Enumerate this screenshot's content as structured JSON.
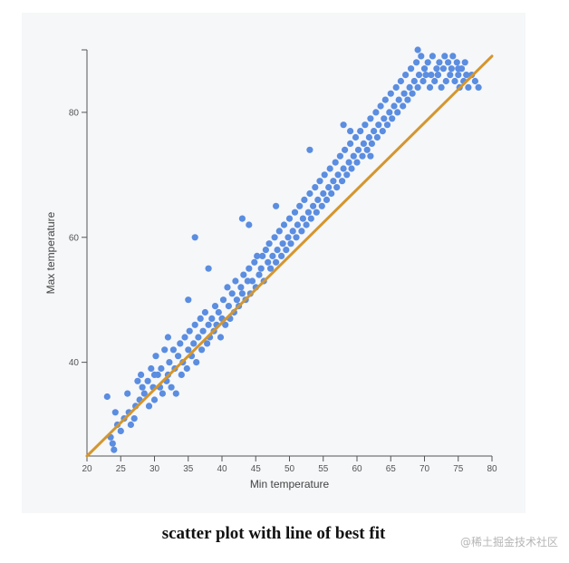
{
  "caption": "scatter plot with line of best fit",
  "watermark": "@稀土掘金技术社区",
  "colors": {
    "points": "#5b8de0",
    "fit_line": "#d4962e",
    "axis": "#555555",
    "panel": "#f5f7f9"
  },
  "chart_data": {
    "type": "scatter",
    "title": "",
    "xlabel": "Min temperature",
    "ylabel": "Max temperature",
    "xlim": [
      20,
      80
    ],
    "ylim": [
      25,
      90
    ],
    "x_ticks": [
      20,
      25,
      30,
      35,
      40,
      45,
      50,
      55,
      60,
      65,
      70,
      75,
      80
    ],
    "y_ticks": [
      40,
      60,
      80
    ],
    "grid": false,
    "best_fit_line": {
      "x": [
        20,
        80
      ],
      "y": [
        25,
        89
      ]
    },
    "series": [
      {
        "points": [
          [
            23,
            34.5
          ],
          [
            23.5,
            28
          ],
          [
            23.8,
            27
          ],
          [
            24,
            26
          ],
          [
            24.2,
            32
          ],
          [
            24.5,
            30
          ],
          [
            25,
            29
          ],
          [
            25.5,
            31
          ],
          [
            26,
            35
          ],
          [
            26.2,
            32
          ],
          [
            26.5,
            30
          ],
          [
            27,
            31
          ],
          [
            27.2,
            33
          ],
          [
            27.5,
            37
          ],
          [
            27.8,
            34
          ],
          [
            28,
            38
          ],
          [
            28.2,
            36
          ],
          [
            28.5,
            35
          ],
          [
            29,
            37
          ],
          [
            29.2,
            33
          ],
          [
            29.5,
            39
          ],
          [
            29.8,
            36
          ],
          [
            30,
            34
          ],
          [
            30.2,
            41
          ],
          [
            30.5,
            38
          ],
          [
            30.8,
            36
          ],
          [
            31,
            39
          ],
          [
            31.2,
            35
          ],
          [
            31.5,
            42
          ],
          [
            31.8,
            37
          ],
          [
            32,
            38
          ],
          [
            32.2,
            40
          ],
          [
            32.5,
            36
          ],
          [
            32.8,
            42
          ],
          [
            33,
            39
          ],
          [
            33.2,
            35
          ],
          [
            33.5,
            41
          ],
          [
            33.8,
            43
          ],
          [
            34,
            38
          ],
          [
            34.2,
            40
          ],
          [
            34.5,
            44
          ],
          [
            34.8,
            39
          ],
          [
            35,
            42
          ],
          [
            35.2,
            45
          ],
          [
            35.5,
            41
          ],
          [
            35.8,
            43
          ],
          [
            36,
            46
          ],
          [
            36.2,
            40
          ],
          [
            36.5,
            44
          ],
          [
            36.8,
            47
          ],
          [
            37,
            42
          ],
          [
            37.2,
            45
          ],
          [
            37.5,
            48
          ],
          [
            37.8,
            43
          ],
          [
            38,
            46
          ],
          [
            38.2,
            44
          ],
          [
            38.5,
            47
          ],
          [
            38.8,
            45
          ],
          [
            39,
            49
          ],
          [
            39.2,
            46
          ],
          [
            39.5,
            48
          ],
          [
            39.8,
            44
          ],
          [
            40,
            47
          ],
          [
            40.2,
            50
          ],
          [
            40.5,
            46
          ],
          [
            40.8,
            52
          ],
          [
            41,
            49
          ],
          [
            41.2,
            47
          ],
          [
            41.5,
            51
          ],
          [
            41.8,
            48
          ],
          [
            42,
            53
          ],
          [
            42.2,
            50
          ],
          [
            42.5,
            49
          ],
          [
            42.8,
            52
          ],
          [
            43,
            51
          ],
          [
            43.2,
            54
          ],
          [
            43.5,
            50
          ],
          [
            43.8,
            53
          ],
          [
            44,
            55
          ],
          [
            44.2,
            51
          ],
          [
            44.5,
            53
          ],
          [
            44.8,
            56
          ],
          [
            45,
            52
          ],
          [
            45.2,
            57
          ],
          [
            45.5,
            54
          ],
          [
            45.8,
            55
          ],
          [
            46,
            57
          ],
          [
            46.2,
            53
          ],
          [
            46.5,
            58
          ],
          [
            46.8,
            56
          ],
          [
            47,
            59
          ],
          [
            47.2,
            55
          ],
          [
            47.5,
            57
          ],
          [
            47.8,
            60
          ],
          [
            48,
            56
          ],
          [
            48.2,
            58
          ],
          [
            48.5,
            61
          ],
          [
            48.8,
            57
          ],
          [
            49,
            59
          ],
          [
            49.2,
            62
          ],
          [
            49.5,
            58
          ],
          [
            49.8,
            60
          ],
          [
            50,
            63
          ],
          [
            50.2,
            59
          ],
          [
            50.5,
            61
          ],
          [
            50.8,
            64
          ],
          [
            51,
            60
          ],
          [
            51.2,
            62
          ],
          [
            51.5,
            65
          ],
          [
            51.8,
            61
          ],
          [
            52,
            63
          ],
          [
            52.2,
            66
          ],
          [
            52.5,
            62
          ],
          [
            52.8,
            64
          ],
          [
            53,
            67
          ],
          [
            53.2,
            63
          ],
          [
            53.5,
            65
          ],
          [
            53.8,
            68
          ],
          [
            54,
            64
          ],
          [
            54.2,
            66
          ],
          [
            54.5,
            69
          ],
          [
            54.8,
            65
          ],
          [
            55,
            67
          ],
          [
            55.2,
            70
          ],
          [
            55.5,
            66
          ],
          [
            55.8,
            68
          ],
          [
            56,
            71
          ],
          [
            56.2,
            67
          ],
          [
            56.5,
            69
          ],
          [
            56.8,
            72
          ],
          [
            57,
            68
          ],
          [
            57.2,
            70
          ],
          [
            57.5,
            73
          ],
          [
            57.8,
            69
          ],
          [
            58,
            71
          ],
          [
            58.2,
            74
          ],
          [
            58.5,
            70
          ],
          [
            58.8,
            72
          ],
          [
            59,
            75
          ],
          [
            59.2,
            71
          ],
          [
            59.5,
            73
          ],
          [
            59.8,
            76
          ],
          [
            60,
            72
          ],
          [
            60.2,
            74
          ],
          [
            60.5,
            77
          ],
          [
            60.8,
            73
          ],
          [
            61,
            75
          ],
          [
            61.2,
            78
          ],
          [
            61.5,
            74
          ],
          [
            61.8,
            76
          ],
          [
            62,
            79
          ],
          [
            62.2,
            75
          ],
          [
            62.5,
            77
          ],
          [
            62.8,
            80
          ],
          [
            63,
            76
          ],
          [
            63.2,
            78
          ],
          [
            63.5,
            81
          ],
          [
            63.8,
            77
          ],
          [
            64,
            79
          ],
          [
            64.2,
            82
          ],
          [
            64.5,
            78
          ],
          [
            64.8,
            80
          ],
          [
            65,
            83
          ],
          [
            65.2,
            79
          ],
          [
            65.5,
            81
          ],
          [
            65.8,
            84
          ],
          [
            66,
            80
          ],
          [
            66.2,
            82
          ],
          [
            66.5,
            85
          ],
          [
            66.8,
            81
          ],
          [
            67,
            83
          ],
          [
            67.2,
            86
          ],
          [
            67.5,
            82
          ],
          [
            67.8,
            84
          ],
          [
            68,
            87
          ],
          [
            68.2,
            83
          ],
          [
            68.5,
            85
          ],
          [
            68.8,
            88
          ],
          [
            69,
            84
          ],
          [
            69.2,
            86
          ],
          [
            69.5,
            89
          ],
          [
            69.8,
            85
          ],
          [
            70,
            87
          ],
          [
            70.2,
            86
          ],
          [
            70.5,
            88
          ],
          [
            70.8,
            84
          ],
          [
            71,
            86
          ],
          [
            71.2,
            89
          ],
          [
            71.5,
            85
          ],
          [
            71.8,
            87
          ],
          [
            72,
            86
          ],
          [
            72.2,
            88
          ],
          [
            72.5,
            84
          ],
          [
            72.8,
            87
          ],
          [
            73,
            89
          ],
          [
            73.2,
            85
          ],
          [
            73.5,
            88
          ],
          [
            73.8,
            86
          ],
          [
            74,
            87
          ],
          [
            74.2,
            89
          ],
          [
            74.5,
            85
          ],
          [
            74.8,
            88
          ],
          [
            75,
            86
          ],
          [
            75.2,
            84
          ],
          [
            75.5,
            87
          ],
          [
            75.8,
            85
          ],
          [
            76,
            88
          ],
          [
            76.2,
            86
          ],
          [
            76.5,
            84
          ],
          [
            77,
            86
          ],
          [
            77.5,
            85
          ],
          [
            78,
            84
          ],
          [
            30,
            38
          ],
          [
            32,
            44
          ],
          [
            35,
            50
          ],
          [
            38,
            55
          ],
          [
            36,
            60
          ],
          [
            43,
            63
          ],
          [
            44,
            62
          ],
          [
            48,
            65
          ],
          [
            53,
            74
          ],
          [
            58,
            78
          ],
          [
            59,
            77
          ],
          [
            62,
            73
          ],
          [
            69,
            90
          ],
          [
            72,
            86
          ],
          [
            75,
            87
          ]
        ]
      }
    ]
  }
}
